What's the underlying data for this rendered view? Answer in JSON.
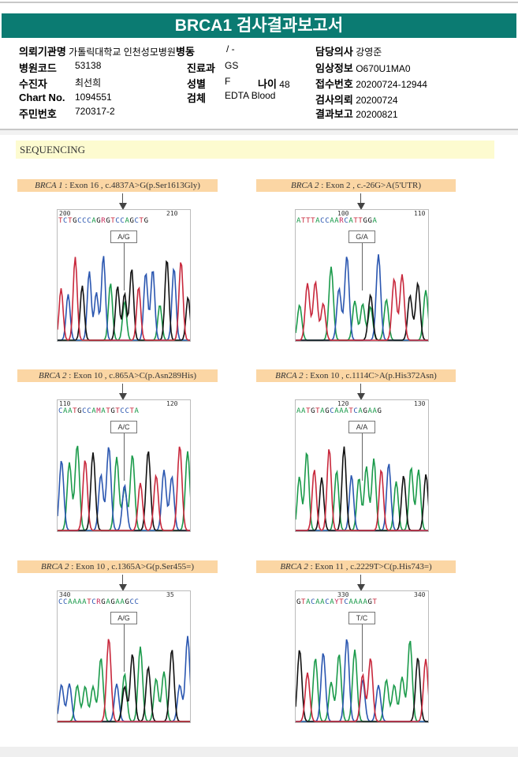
{
  "title": "BRCA1 검사결과보고서",
  "info": {
    "institution_label": "의뢰기관명",
    "institution": "가톨릭대학교 인천성모병원",
    "ward_label": "병동",
    "ward": "/ -",
    "doctor_label": "담당의사",
    "doctor": "강영준",
    "hospital_code_label": "병원코드",
    "hospital_code": "53138",
    "dept_label": "진료과",
    "dept": "GS",
    "clinical_label": "임상정보",
    "clinical": "O670U1MA0",
    "patient_label": "수진자",
    "patient": "최선희",
    "sex_label": "성별",
    "sex": "F",
    "age_label": "나이",
    "age": "48",
    "receipt_label": "접수번호",
    "receipt": "20200724-12944",
    "chart_label": "Chart No.",
    "chart": "1094551",
    "specimen_label": "검체",
    "specimen": "EDTA Blood",
    "request_label": "검사의뢰",
    "request": "20200724",
    "id_label": "주민번호",
    "id": "720317-2",
    "report_label": "결과보고",
    "report": "20200821"
  },
  "section": "SEQUENCING",
  "base_colors": {
    "A": "#1a9a4a",
    "C": "#2a56b0",
    "G": "#111111",
    "T": "#c8283c",
    "R": "#c8285a",
    "M": "#c8285a",
    "Y": "#c8285a"
  },
  "panels": [
    {
      "gene": "BRCA 1",
      "variant": " : Exon 16 , c.4837A>G(p.Ser1613Gly)",
      "n1": "200",
      "n2": "210",
      "sequence": "TCTGCCCAGRGTCCAGCTG",
      "call": "A/G"
    },
    {
      "gene": "BRCA 2",
      "variant": " : Exon 2 , c.-26G>A(5'UTR)",
      "n1": "100",
      "n2": "110",
      "sequence": "ATTTACCAARCATTGGA",
      "call": "G/A"
    },
    {
      "gene": "BRCA 2",
      "variant": " : Exon 10 , c.865A>C(p.Asn289His)",
      "n1": "110",
      "n2": "120",
      "sequence": "CAATGCCAMATGTCCTA",
      "call": "A/C"
    },
    {
      "gene": "BRCA 2",
      "variant": " : Exon 10 , c.1114C>A(p.His372Asn)",
      "n1": "120",
      "n2": "130",
      "sequence": "AATGTAGCAAATCAGAAG",
      "call": "A/A"
    },
    {
      "gene": "BRCA 2",
      "variant": " : Exon 10 , c.1365A>G(p.Ser455=)",
      "n1": "340",
      "n2": "35",
      "sequence": "CCAAAATCRGAGAAGCC",
      "call": "A/G"
    },
    {
      "gene": "BRCA 2",
      "variant": " : Exon 11 , c.2229T>C(p.His743=)",
      "n1": "330",
      "n2": "340",
      "sequence": "GTACAACAYTCAAAAGT",
      "call": "T/C"
    }
  ]
}
